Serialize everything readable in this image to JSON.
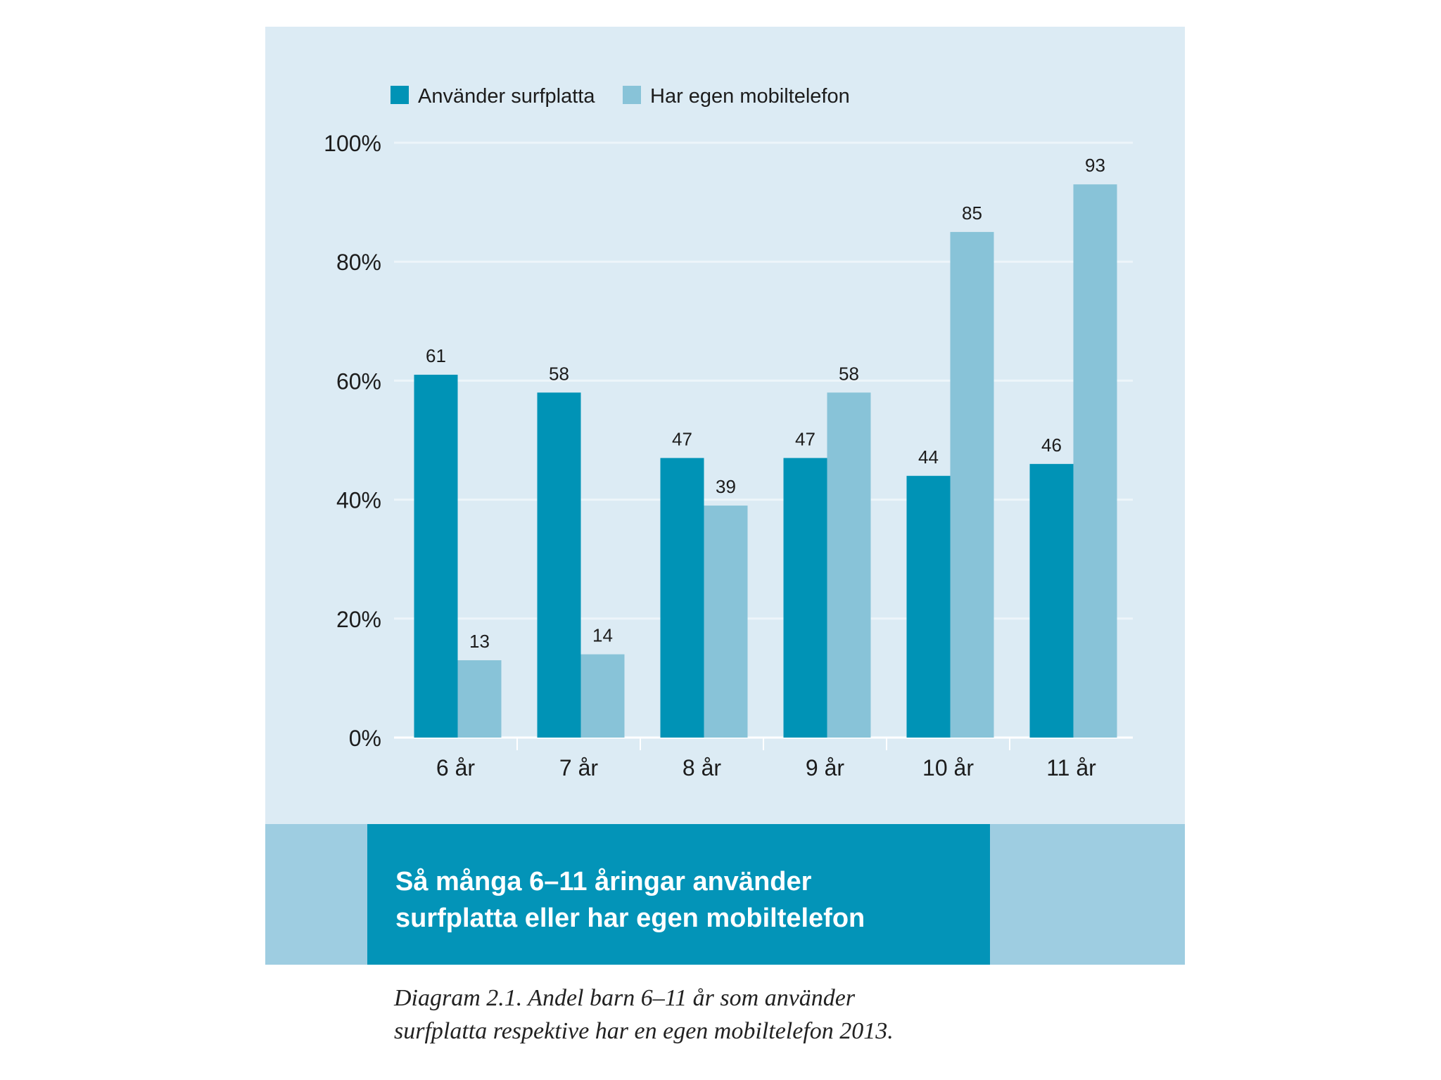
{
  "chart_data": {
    "type": "bar",
    "title_lines": [
      "Så många 6–11 åringar använder",
      "surfplatta eller har egen mobiltelefon"
    ],
    "categories": [
      "6 år",
      "7 år",
      "8 år",
      "9 år",
      "10 år",
      "11 år"
    ],
    "series": [
      {
        "name": "Använder surfplatta",
        "color": "#0093b6",
        "values": [
          61,
          58,
          47,
          47,
          44,
          46
        ]
      },
      {
        "name": "Har egen mobiltelefon",
        "color": "#88c3d8",
        "values": [
          13,
          14,
          39,
          58,
          85,
          93
        ]
      }
    ],
    "yticks": [
      "0%",
      "20%",
      "40%",
      "60%",
      "80%",
      "100%"
    ],
    "ylim": [
      0,
      100
    ],
    "grid": true,
    "legend": "top-left",
    "xlabel": "",
    "ylabel": ""
  },
  "caption": {
    "line1": "Diagram 2.1. Andel barn 6–11 år som använder",
    "line2": "surfplatta respektive har en egen mobiltelefon 2013."
  },
  "colors": {
    "panel_bg": "#dcebf4",
    "grid": "#edf5fa",
    "title_box": "#0394b8",
    "title_band": "#9ecde1"
  }
}
